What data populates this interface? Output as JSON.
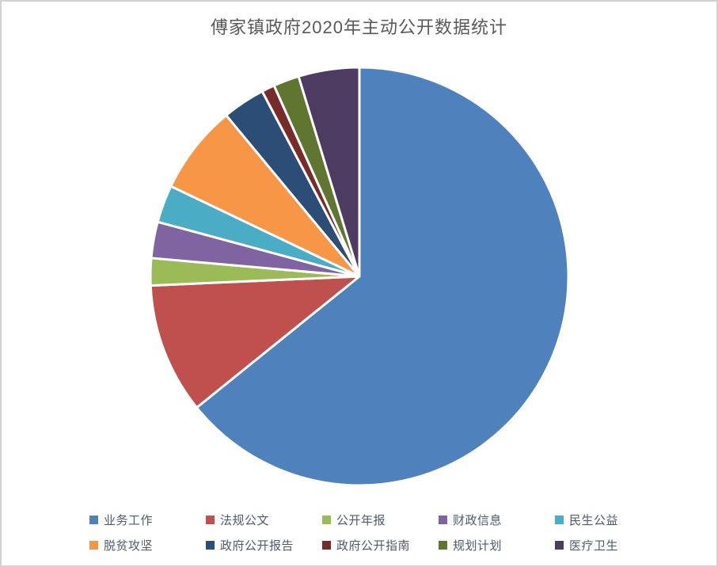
{
  "window": {
    "background": "#ffffff",
    "border_color": "#d2d2d2"
  },
  "chart_data": {
    "type": "pie",
    "title": "傅家镇政府2020年主动公开数据统计",
    "title_color": "#595959",
    "categories": [
      "业务工作",
      "法规公文",
      "公开年报",
      "财政信息",
      "民生公益",
      "脱贫攻坚",
      "政府公开报告",
      "政府公开指南",
      "规划计划",
      "医疗卫生"
    ],
    "values": [
      64.2,
      10.1,
      2.1,
      2.8,
      2.9,
      6.9,
      3.3,
      1.0,
      2.0,
      4.7
    ],
    "unit": "%",
    "colors": [
      "#4F81BD",
      "#C0504D",
      "#9BBB59",
      "#8064A2",
      "#4BACC6",
      "#F79646",
      "#2C4D75",
      "#772C2A",
      "#5F7530",
      "#4D3B62"
    ],
    "start_angle_deg": 0,
    "direction": "clockwise",
    "separator_color": "#ffffff",
    "legend_position": "bottom",
    "legend_rows": 2,
    "legend_text_color": "#4e5b6e"
  }
}
